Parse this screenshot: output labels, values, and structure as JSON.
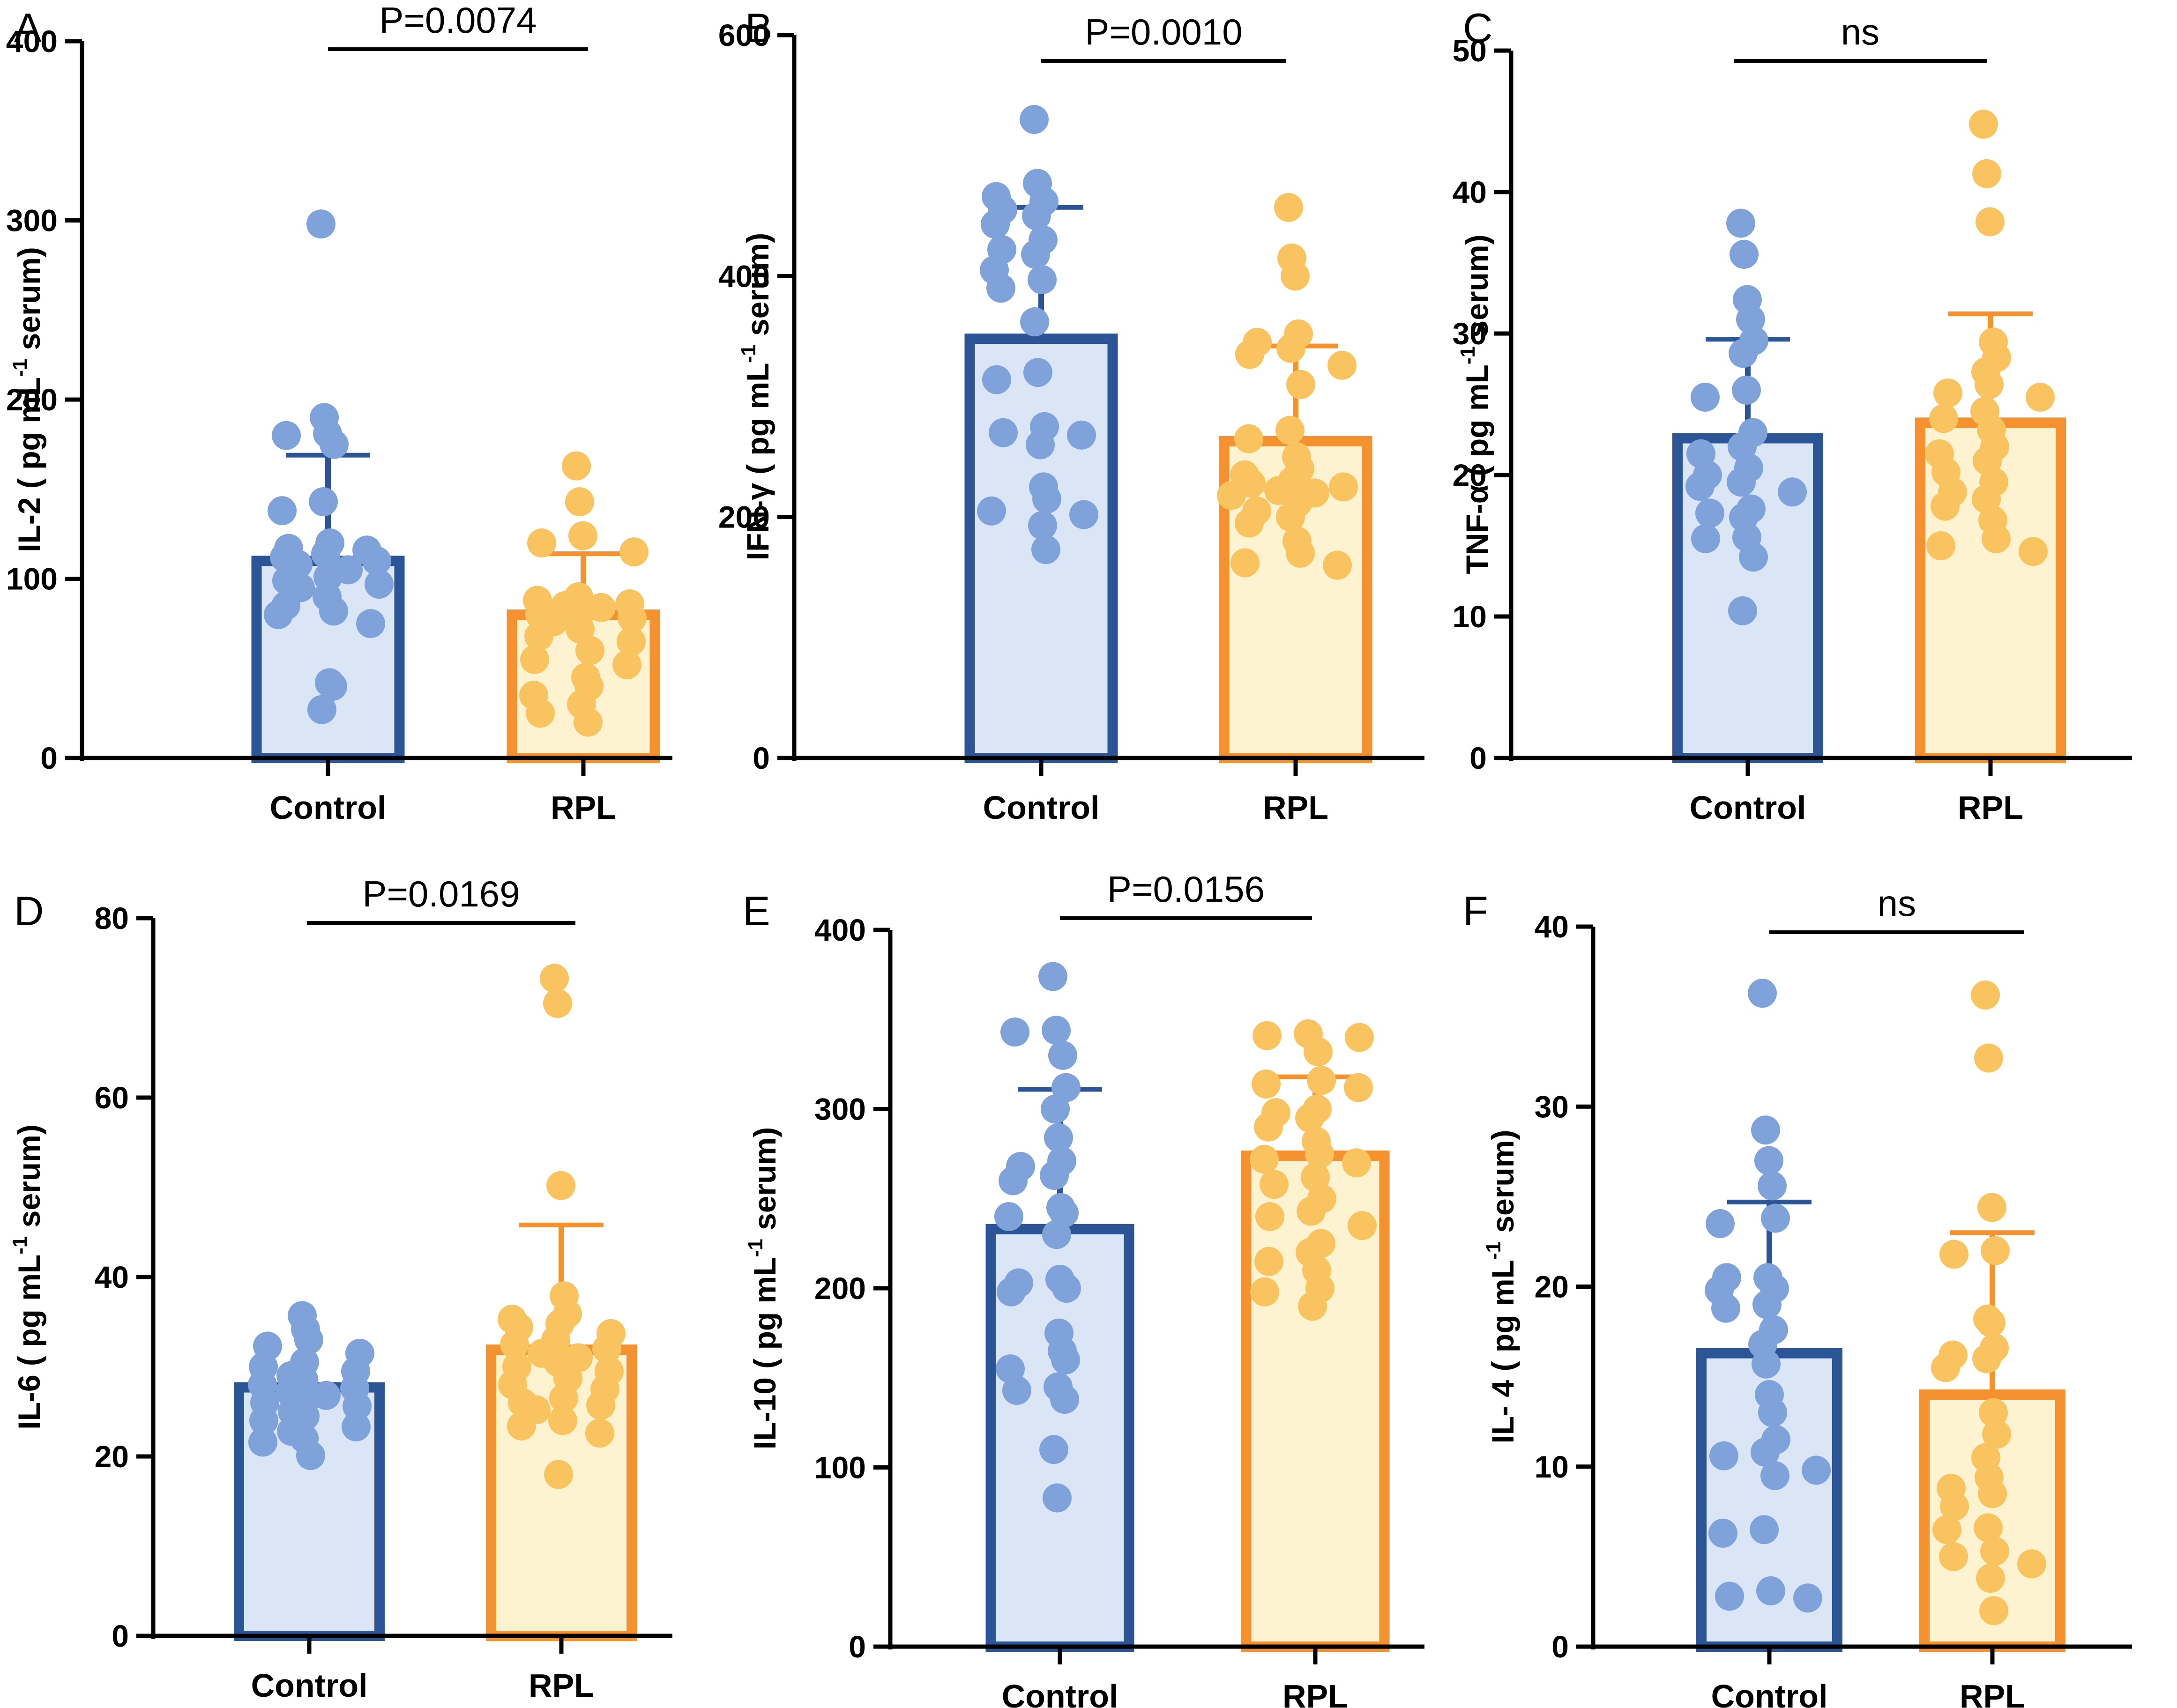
{
  "figure": {
    "colors": {
      "control_edge": "#2B5597",
      "control_fill": "#DAE5F5",
      "control_dot": "#7FA2DA",
      "rpl_edge": "#F5912E",
      "rpl_fill": "#FDF3D1",
      "rpl_dot": "#F9C360",
      "axis": "#000000"
    }
  },
  "chart_data": [
    {
      "panel": "A",
      "type": "bar",
      "categories": [
        "Control",
        "RPL"
      ],
      "series": [
        {
          "name": "mean",
          "values": [
            110,
            80
          ]
        }
      ],
      "error_upper": [
        169,
        114
      ],
      "points": [
        [
          298,
          190,
          181,
          180,
          175,
          143,
          138,
          120,
          117,
          116,
          114,
          112,
          110,
          108,
          105,
          101,
          99,
          97,
          95,
          90,
          85,
          82,
          80,
          75,
          42,
          40,
          27
        ],
        [
          163,
          143,
          124,
          120,
          115,
          90,
          88,
          86,
          85,
          84,
          82,
          80,
          78,
          76,
          72,
          68,
          65,
          60,
          55,
          52,
          45,
          40,
          35,
          30,
          25,
          20
        ]
      ],
      "ylabel_pre": "IL-2 ( pg mL",
      "ylabel_sup": "-1",
      "ylabel_post": " serum)",
      "ylim": [
        0,
        400
      ],
      "yticks": [
        0,
        100,
        200,
        300,
        400
      ],
      "ytick_labels": [
        "0",
        "100",
        "200",
        "300",
        "400"
      ],
      "significance": "P=0.0074"
    },
    {
      "panel": "B",
      "type": "bar",
      "categories": [
        "Control",
        "RPL"
      ],
      "series": [
        {
          "name": "mean",
          "values": [
            348,
            263
          ]
        }
      ],
      "error_upper": [
        457,
        342
      ],
      "points": [
        [
          530,
          477,
          466,
          462,
          455,
          450,
          443,
          430,
          422,
          418,
          405,
          397,
          390,
          362,
          320,
          314,
          275,
          270,
          268,
          260,
          225,
          215,
          205,
          202,
          193,
          173
        ],
        [
          457,
          415,
          400,
          352,
          345,
          340,
          335,
          326,
          310,
          272,
          265,
          250,
          240,
          235,
          230,
          228,
          225,
          222,
          220,
          218,
          212,
          205,
          200,
          195,
          180,
          170,
          162,
          160
        ]
      ],
      "ylabel_pre": "IFN-γ ( pg mL",
      "ylabel_sup": "-1",
      "ylabel_post": " serum)",
      "ylim": [
        0,
        600
      ],
      "yticks": [
        0,
        200,
        400,
        600
      ],
      "ytick_labels": [
        "0",
        "200",
        "400",
        "600"
      ],
      "significance": "P=0.0010"
    },
    {
      "panel": "C",
      "type": "bar",
      "categories": [
        "Control",
        "RPL"
      ],
      "series": [
        {
          "name": "mean",
          "values": [
            22.6,
            23.7
          ]
        }
      ],
      "error_upper": [
        29.6,
        31.4
      ],
      "points": [
        [
          37.8,
          35.6,
          32.4,
          31.0,
          29.5,
          28.6,
          26.0,
          25.5,
          23.0,
          22.0,
          21.5,
          20.5,
          20.0,
          19.5,
          19.2,
          18.8,
          17.6,
          17.3,
          17.0,
          15.6,
          15.5,
          14.2,
          10.4
        ],
        [
          44.8,
          41.3,
          37.9,
          29.4,
          28.3,
          27.3,
          26.4,
          25.8,
          25.5,
          24.5,
          24.0,
          23.2,
          22.0,
          21.5,
          21.0,
          20.2,
          19.5,
          18.8,
          18.3,
          17.8,
          16.8,
          15.5,
          15.0,
          14.6
        ]
      ],
      "ylabel_pre": "TNF-α ( pg mL",
      "ylabel_sup": "-1",
      "ylabel_post": " serum)",
      "ylim": [
        0,
        50
      ],
      "yticks": [
        0,
        10,
        20,
        30,
        40,
        50
      ],
      "ytick_labels": [
        "0",
        "10",
        "20",
        "30",
        "40",
        "50"
      ],
      "significance": "ns"
    },
    {
      "panel": "D",
      "type": "bar",
      "categories": [
        "Control",
        "RPL"
      ],
      "series": [
        {
          "name": "mean",
          "values": [
            27.7,
            31.9
          ]
        }
      ],
      "error_upper": [
        27.7,
        45.8
      ],
      "points": [
        [
          35.7,
          34.2,
          33.0,
          32.3,
          31.5,
          30.5,
          30.0,
          29.5,
          29.0,
          28.6,
          28.0,
          27.6,
          27.2,
          26.8,
          26.4,
          26.0,
          25.6,
          25.0,
          24.5,
          24.0,
          23.3,
          22.8,
          22.0,
          21.6,
          20.1
        ],
        [
          73.3,
          70.5,
          50.2,
          37.9,
          35.9,
          35.3,
          34.8,
          34.4,
          33.7,
          33.0,
          32.5,
          32.0,
          31.5,
          31.0,
          30.5,
          30.0,
          29.5,
          28.7,
          28.0,
          27.5,
          26.5,
          26.0,
          25.7,
          25.2,
          24.0,
          23.4,
          22.6,
          18.0
        ]
      ],
      "ylabel_pre": "IL-6 ( pg mL",
      "ylabel_sup": "-1",
      "ylabel_post": " serum)",
      "ylim": [
        0,
        80
      ],
      "yticks": [
        0,
        20,
        40,
        60,
        80
      ],
      "ytick_labels": [
        "0",
        "20",
        "40",
        "60",
        "80"
      ],
      "significance": "P=0.0169"
    },
    {
      "panel": "E",
      "type": "bar",
      "categories": [
        "Control",
        "RPL"
      ],
      "series": [
        {
          "name": "mean",
          "values": [
            233,
            274
          ]
        }
      ],
      "error_upper": [
        311,
        318
      ],
      "points": [
        [
          374,
          344,
          343,
          330,
          312,
          300,
          284,
          271,
          268,
          263,
          260,
          245,
          242,
          240,
          230,
          205,
          203,
          200,
          198,
          175,
          165,
          160,
          155,
          145,
          143,
          138,
          110,
          83
        ],
        [
          342,
          341,
          340,
          332,
          316,
          314,
          312,
          300,
          298,
          295,
          290,
          282,
          275,
          272,
          270,
          262,
          258,
          250,
          243,
          240,
          235,
          225,
          220,
          215,
          210,
          200,
          198,
          190
        ]
      ],
      "ylabel_pre": "IL-10 ( pg mL",
      "ylabel_sup": "-1",
      "ylabel_post": " serum)",
      "ylim": [
        0,
        400
      ],
      "yticks": [
        0,
        100,
        200,
        300,
        400
      ],
      "ytick_labels": [
        "0",
        "100",
        "200",
        "300",
        "400"
      ],
      "significance": "P=0.0156"
    },
    {
      "panel": "F",
      "type": "bar",
      "categories": [
        "Control",
        "RPL"
      ],
      "series": [
        {
          "name": "mean",
          "values": [
            16.3,
            14.0
          ]
        }
      ],
      "error_upper": [
        24.7,
        23.0
      ],
      "points": [
        [
          36.3,
          28.7,
          27.0,
          25.6,
          23.8,
          23.5,
          20.5,
          20.5,
          19.9,
          19.8,
          19.0,
          18.8,
          17.6,
          16.8,
          15.7,
          14.0,
          13.0,
          11.5,
          10.8,
          10.6,
          9.8,
          9.5,
          6.5,
          6.3,
          3.1,
          2.8,
          2.7
        ],
        [
          36.2,
          32.7,
          24.4,
          22.0,
          21.8,
          18.2,
          18.0,
          16.6,
          16.2,
          16.0,
          15.5,
          13.0,
          11.8,
          10.5,
          9.4,
          8.5,
          8.8,
          7.8,
          6.6,
          6.5,
          5.3,
          5.0,
          4.6,
          3.8,
          2.0
        ]
      ],
      "ylabel_pre": "IL- 4 ( pg mL",
      "ylabel_sup": "-1",
      "ylabel_post": " serum)",
      "ylim": [
        0,
        40
      ],
      "yticks": [
        0,
        10,
        20,
        30,
        40
      ],
      "ytick_labels": [
        "0",
        "10",
        "20",
        "30",
        "40"
      ],
      "significance": "ns"
    }
  ]
}
